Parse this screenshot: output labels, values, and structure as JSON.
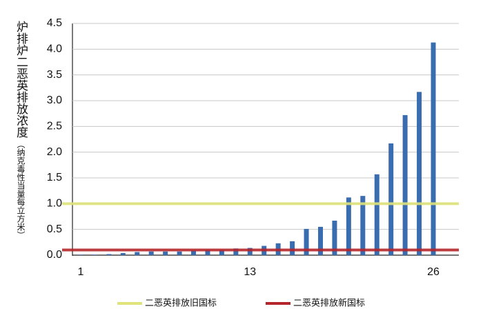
{
  "chart_data": {
    "type": "bar",
    "y_label": "炉排炉二恶英排放浓度",
    "y_label_unit": "（纳克毒性当量每立方米）",
    "categories": [
      "1",
      null,
      null,
      null,
      null,
      null,
      null,
      null,
      null,
      null,
      null,
      null,
      "13",
      null,
      null,
      null,
      null,
      null,
      null,
      null,
      null,
      null,
      null,
      null,
      null,
      "26"
    ],
    "values": [
      0.01,
      0.01,
      0.02,
      0.04,
      0.06,
      0.07,
      0.07,
      0.07,
      0.09,
      0.1,
      0.1,
      0.13,
      0.14,
      0.18,
      0.23,
      0.27,
      0.51,
      0.55,
      0.67,
      1.12,
      1.15,
      1.57,
      2.17,
      2.72,
      3.17,
      4.13
    ],
    "color": "#3a6cb0",
    "ylim": [
      0,
      4.5
    ],
    "yticks": [
      {
        "value": 0,
        "label": "0.0"
      },
      0.5,
      {
        "value": 1,
        "label": "1.0"
      },
      1.5,
      {
        "value": 2,
        "label": "2.0"
      },
      2.5,
      {
        "value": 3,
        "label": "3.0"
      },
      3.5,
      {
        "value": 4,
        "label": "4.0"
      },
      4.5
    ],
    "grid": true,
    "reference_lines": [
      {
        "name": "二恶英排放旧国标",
        "value": 1,
        "color": "#dfe37a"
      },
      {
        "name": "二恶英排放新国标",
        "value": 0.1,
        "color": "#b5262b"
      }
    ],
    "legend": "bottom"
  }
}
